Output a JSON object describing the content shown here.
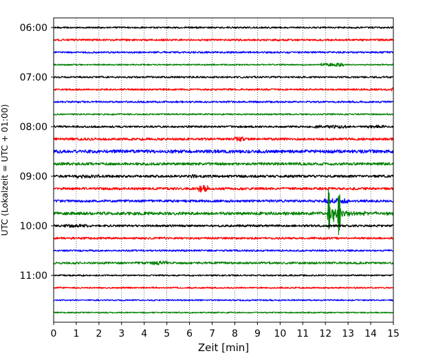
{
  "chart_data": {
    "type": "line",
    "xlabel": "Zeit  [min]",
    "ylabel": "UTC (Lokalzeit = UTC + 01:00)",
    "xlim": [
      0,
      15
    ],
    "x_ticks": [
      0,
      1,
      2,
      3,
      4,
      5,
      6,
      7,
      8,
      9,
      10,
      11,
      12,
      13,
      14,
      15
    ],
    "y_tick_labels": [
      "06:00",
      "07:00",
      "08:00",
      "09:00",
      "10:00",
      "11:00"
    ],
    "vertical_gridlines": true,
    "trace_interval_min": 15,
    "trace_start_utc": "06:00",
    "trace_count": 24,
    "trace_colors": [
      "#000000",
      "#ff0000",
      "#0000ff",
      "#008000"
    ],
    "event": {
      "trace_start_utc": "09:45",
      "onset_min": 12.1,
      "peak_min": 12.6
    }
  }
}
